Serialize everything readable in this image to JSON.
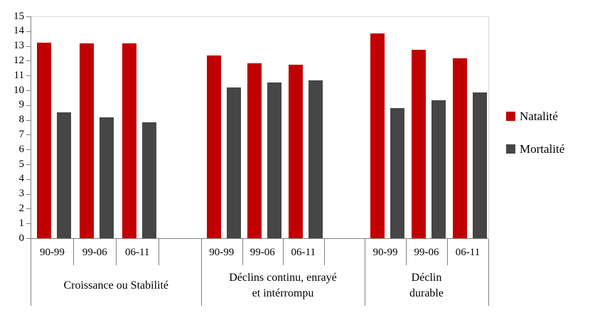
{
  "chart_data": {
    "type": "bar",
    "title": "",
    "xlabel": "",
    "ylabel": "",
    "ylim": [
      0,
      15
    ],
    "ytick_labels": [
      "0",
      "1",
      "2",
      "3",
      "4",
      "5",
      "6",
      "7",
      "8",
      "9",
      "10",
      "11",
      "12",
      "13",
      "14",
      "15"
    ],
    "grid": "top-border-only",
    "legend_position": "right",
    "series": [
      {
        "name": "Natalité",
        "color": "#C00000",
        "values": [
          [
            13.2,
            13.15,
            13.15
          ],
          [
            12.35,
            11.85,
            11.75
          ],
          [
            13.85,
            12.75,
            12.15
          ]
        ]
      },
      {
        "name": "Mortalité",
        "color": "#464646",
        "values": [
          [
            8.5,
            8.15,
            7.85
          ],
          [
            10.2,
            10.55,
            10.65
          ],
          [
            8.8,
            9.35,
            9.85
          ]
        ]
      }
    ],
    "groups": [
      {
        "label_lines": [
          "Croissance ou Stabilité"
        ],
        "periods": [
          "90-99",
          "99-06",
          "06-11"
        ],
        "trailing_blank_slot": true
      },
      {
        "label_lines": [
          "Déclins continu, enrayé",
          "et intérrompu"
        ],
        "periods": [
          "90-99",
          "99-06",
          "06-11"
        ],
        "trailing_blank_slot": true
      },
      {
        "label_lines": [
          "Déclin",
          "durable"
        ],
        "periods": [
          "90-99",
          "99-06",
          "06-11"
        ],
        "trailing_blank_slot": false
      }
    ]
  },
  "colors": {
    "natalite": "#C00000",
    "mortalite": "#464646",
    "axis_line": "#808080",
    "plot_border": "#D9D9D9",
    "background": "#FFFFFF",
    "text": "#000000"
  }
}
